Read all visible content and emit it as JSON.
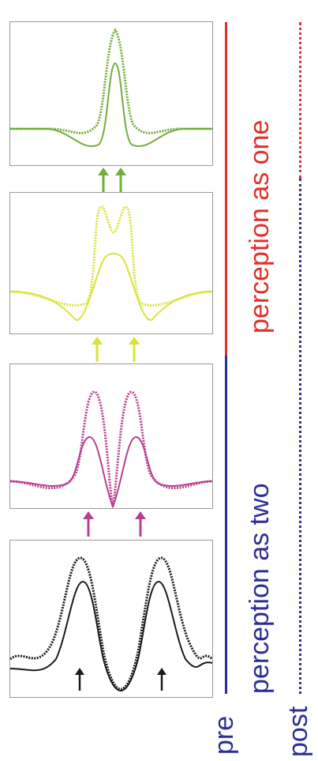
{
  "colors": {
    "black": "#1a1a1a",
    "magenta": "#b5418f",
    "yellow": "#d9e33a",
    "green": "#72ae3a",
    "red": "#e0302a",
    "blue": "#2b2f93"
  },
  "panels": [
    {
      "id": "green",
      "color_key": "green"
    },
    {
      "id": "yellow",
      "color_key": "yellow"
    },
    {
      "id": "magenta",
      "color_key": "magenta"
    },
    {
      "id": "black",
      "color_key": "black"
    }
  ],
  "labels": {
    "perception_one": "perception as one",
    "perception_two": "perception as two",
    "pre": "pre",
    "post": "post"
  }
}
